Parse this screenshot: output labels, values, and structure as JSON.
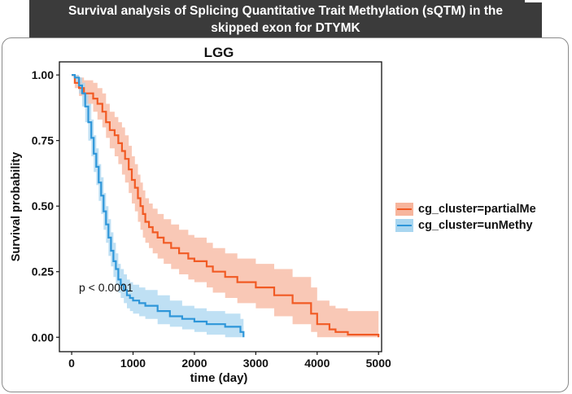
{
  "header": {
    "title_line1": "Survival analysis of Splicing Quantitative Trait Methylation (sQTM) in the",
    "title_line2": "skipped exon for DTYMK"
  },
  "chart_data": {
    "type": "line",
    "subtype": "kaplan-meier",
    "title": "LGG",
    "xlabel": "time (day)",
    "ylabel": "Survival probability",
    "xlim": [
      -200,
      5050
    ],
    "ylim": [
      -0.055,
      1.05
    ],
    "xticks": [
      0,
      1000,
      2000,
      3000,
      4000,
      5000
    ],
    "xtick_labels": [
      "0",
      "1000",
      "2000",
      "3000",
      "4000",
      "5000"
    ],
    "yticks": [
      0,
      0.25,
      0.5,
      0.75,
      1.0
    ],
    "ytick_labels": [
      "0.00",
      "0.25",
      "0.50",
      "0.75",
      "1.00"
    ],
    "annotation": "p < 0.0001",
    "legend_position": "right",
    "series": [
      {
        "name": "cg_cluster=partialMe",
        "color": "#f15a24",
        "band_color": "#f7b59d",
        "x": [
          0,
          50,
          120,
          200,
          350,
          420,
          500,
          560,
          620,
          700,
          760,
          820,
          870,
          930,
          980,
          1030,
          1080,
          1120,
          1160,
          1200,
          1260,
          1320,
          1400,
          1500,
          1620,
          1750,
          1900,
          2000,
          2200,
          2300,
          2500,
          2700,
          3000,
          3300,
          3600,
          3900,
          4000,
          4200,
          4300,
          4500,
          5000
        ],
        "y": [
          1.0,
          0.97,
          0.95,
          0.93,
          0.91,
          0.89,
          0.86,
          0.82,
          0.79,
          0.77,
          0.74,
          0.71,
          0.68,
          0.64,
          0.6,
          0.57,
          0.53,
          0.5,
          0.47,
          0.44,
          0.42,
          0.4,
          0.38,
          0.36,
          0.34,
          0.32,
          0.3,
          0.29,
          0.27,
          0.25,
          0.23,
          0.21,
          0.19,
          0.16,
          0.13,
          0.09,
          0.05,
          0.03,
          0.02,
          0.01,
          0.0
        ],
        "lower": [
          1.0,
          0.95,
          0.92,
          0.89,
          0.86,
          0.83,
          0.8,
          0.76,
          0.72,
          0.69,
          0.66,
          0.62,
          0.59,
          0.55,
          0.51,
          0.48,
          0.44,
          0.41,
          0.38,
          0.36,
          0.34,
          0.32,
          0.3,
          0.28,
          0.26,
          0.24,
          0.22,
          0.21,
          0.19,
          0.17,
          0.15,
          0.13,
          0.11,
          0.08,
          0.05,
          0.02,
          0.0,
          0.0,
          0.0,
          0.0,
          0.0
        ],
        "upper": [
          1.0,
          1.0,
          0.99,
          0.98,
          0.97,
          0.95,
          0.93,
          0.89,
          0.86,
          0.84,
          0.82,
          0.8,
          0.77,
          0.73,
          0.69,
          0.66,
          0.62,
          0.59,
          0.56,
          0.53,
          0.51,
          0.49,
          0.47,
          0.45,
          0.43,
          0.41,
          0.39,
          0.38,
          0.36,
          0.34,
          0.32,
          0.3,
          0.28,
          0.26,
          0.23,
          0.19,
          0.14,
          0.12,
          0.11,
          0.1,
          0.09
        ]
      },
      {
        "name": "cg_cluster=unMethy",
        "color": "#2e96d9",
        "band_color": "#a9d6f0",
        "x": [
          0,
          50,
          120,
          170,
          220,
          270,
          320,
          360,
          400,
          440,
          480,
          520,
          560,
          600,
          640,
          680,
          720,
          760,
          800,
          850,
          900,
          950,
          1000,
          1100,
          1200,
          1400,
          1600,
          1800,
          2000,
          2200,
          2500,
          2750,
          2800
        ],
        "y": [
          1.0,
          0.99,
          0.96,
          0.93,
          0.88,
          0.82,
          0.76,
          0.7,
          0.65,
          0.59,
          0.54,
          0.48,
          0.43,
          0.38,
          0.33,
          0.29,
          0.26,
          0.22,
          0.2,
          0.18,
          0.16,
          0.15,
          0.14,
          0.13,
          0.12,
          0.1,
          0.08,
          0.07,
          0.06,
          0.05,
          0.04,
          0.02,
          0.0
        ],
        "lower": [
          1.0,
          0.97,
          0.93,
          0.88,
          0.82,
          0.75,
          0.69,
          0.63,
          0.58,
          0.52,
          0.47,
          0.41,
          0.36,
          0.31,
          0.27,
          0.23,
          0.2,
          0.17,
          0.15,
          0.13,
          0.11,
          0.1,
          0.09,
          0.08,
          0.07,
          0.05,
          0.04,
          0.03,
          0.02,
          0.01,
          0.0,
          0.0,
          0.0
        ],
        "upper": [
          1.0,
          1.0,
          0.99,
          0.97,
          0.93,
          0.89,
          0.83,
          0.77,
          0.72,
          0.66,
          0.61,
          0.55,
          0.5,
          0.45,
          0.4,
          0.36,
          0.32,
          0.28,
          0.26,
          0.24,
          0.22,
          0.21,
          0.2,
          0.19,
          0.18,
          0.16,
          0.14,
          0.12,
          0.11,
          0.1,
          0.09,
          0.07,
          0.06
        ]
      }
    ]
  }
}
